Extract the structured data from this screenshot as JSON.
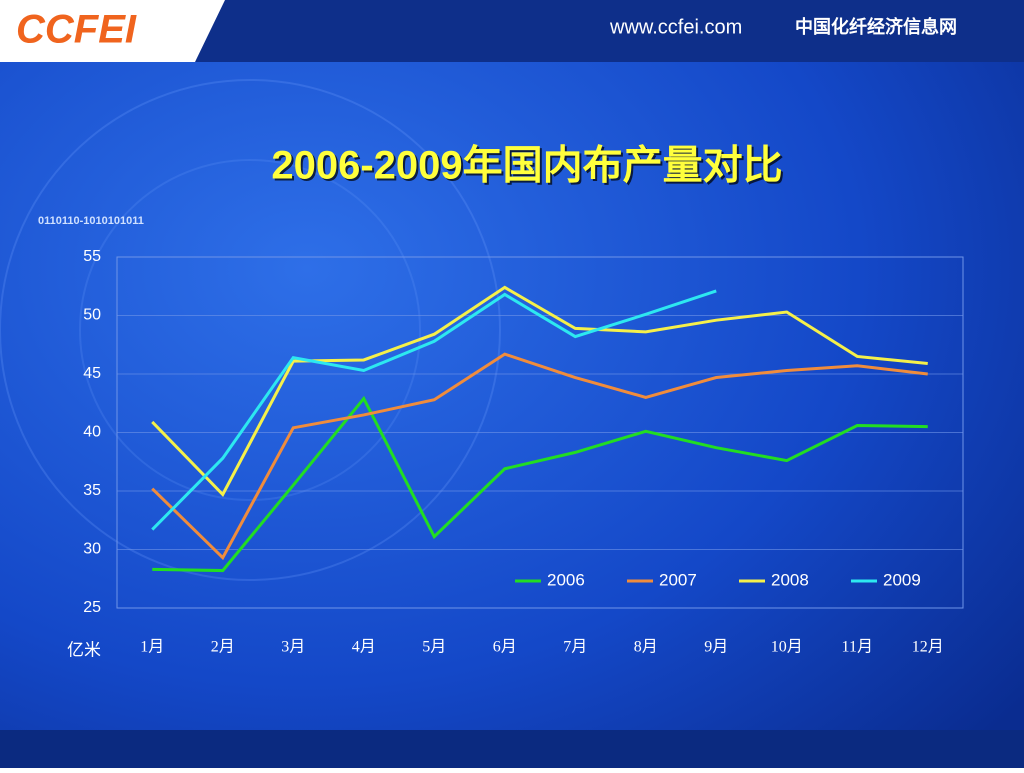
{
  "header": {
    "logo": "CCFEI",
    "url": "www.ccfei.com",
    "site_name": "中国化纤经济信息网",
    "binary_text": "0110110-1010101011"
  },
  "chart_data": {
    "type": "line",
    "title": "2006-2009年国内布产量对比",
    "ylabel": "亿米",
    "categories": [
      "1月",
      "2月",
      "3月",
      "4月",
      "5月",
      "6月",
      "7月",
      "8月",
      "9月",
      "10月",
      "11月",
      "12月"
    ],
    "series": [
      {
        "name": "2006",
        "color": "#22dd22",
        "values": [
          28.3,
          28.2,
          35.5,
          42.9,
          31.1,
          36.9,
          38.3,
          40.1,
          38.7,
          37.6,
          40.6,
          40.5
        ]
      },
      {
        "name": "2007",
        "color": "#f08c3c",
        "values": [
          35.2,
          29.3,
          40.4,
          41.5,
          42.8,
          46.7,
          44.7,
          43.0,
          44.7,
          45.3,
          45.7,
          45.0
        ]
      },
      {
        "name": "2008",
        "color": "#f5f04a",
        "values": [
          40.9,
          34.7,
          46.1,
          46.2,
          48.4,
          52.4,
          48.9,
          48.6,
          49.6,
          50.3,
          46.5,
          45.9
        ]
      },
      {
        "name": "2009",
        "color": "#2de8f0",
        "values": [
          31.7,
          37.8,
          46.4,
          45.3,
          47.8,
          51.8,
          48.2,
          50.1,
          52.1,
          null,
          null,
          null
        ]
      }
    ],
    "ylim": [
      25,
      55
    ],
    "yticks": [
      25,
      30,
      35,
      40,
      45,
      50,
      55
    ],
    "grid": true,
    "legend": "lower right"
  }
}
